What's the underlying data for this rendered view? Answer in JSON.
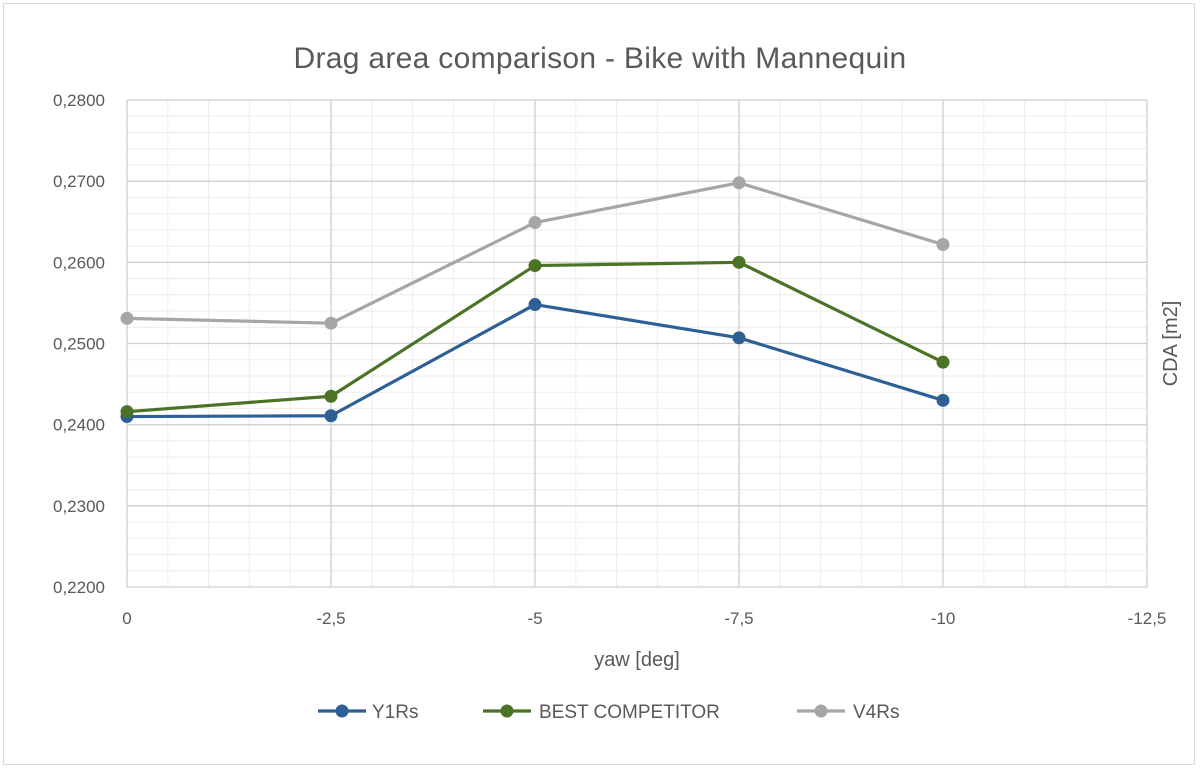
{
  "chart_data": {
    "type": "line",
    "title": "Drag area comparison - Bike with Mannequin",
    "xlabel": "yaw [deg]",
    "ylabel": "CDA [m2]",
    "xlim": [
      0,
      -12.5
    ],
    "ylim": [
      0.22,
      0.28
    ],
    "x_ticks": [
      "0",
      "-2,5",
      "-5",
      "-7,5",
      "-10",
      "-12,5"
    ],
    "x_tick_values": [
      0,
      -2.5,
      -5,
      -7.5,
      -10,
      -12.5
    ],
    "y_ticks": [
      "0,2200",
      "0,2300",
      "0,2400",
      "0,2500",
      "0,2600",
      "0,2700",
      "0,2800"
    ],
    "y_tick_values": [
      0.22,
      0.23,
      0.24,
      0.25,
      0.26,
      0.27,
      0.28
    ],
    "grid": true,
    "legend_position": "bottom",
    "x": [
      0,
      -2.5,
      -5,
      -7.5,
      -10
    ],
    "series": [
      {
        "name": "Y1Rs",
        "color": "#2e6096",
        "values": [
          0.241,
          0.2411,
          0.2548,
          0.2507,
          0.243
        ]
      },
      {
        "name": "BEST COMPETITOR",
        "color": "#4a7326",
        "values": [
          0.2416,
          0.2435,
          0.2596,
          0.26,
          0.2477
        ]
      },
      {
        "name": "V4Rs",
        "color": "#a6a6a6",
        "values": [
          0.2531,
          0.2525,
          0.2649,
          0.2698,
          0.2622
        ]
      }
    ]
  }
}
